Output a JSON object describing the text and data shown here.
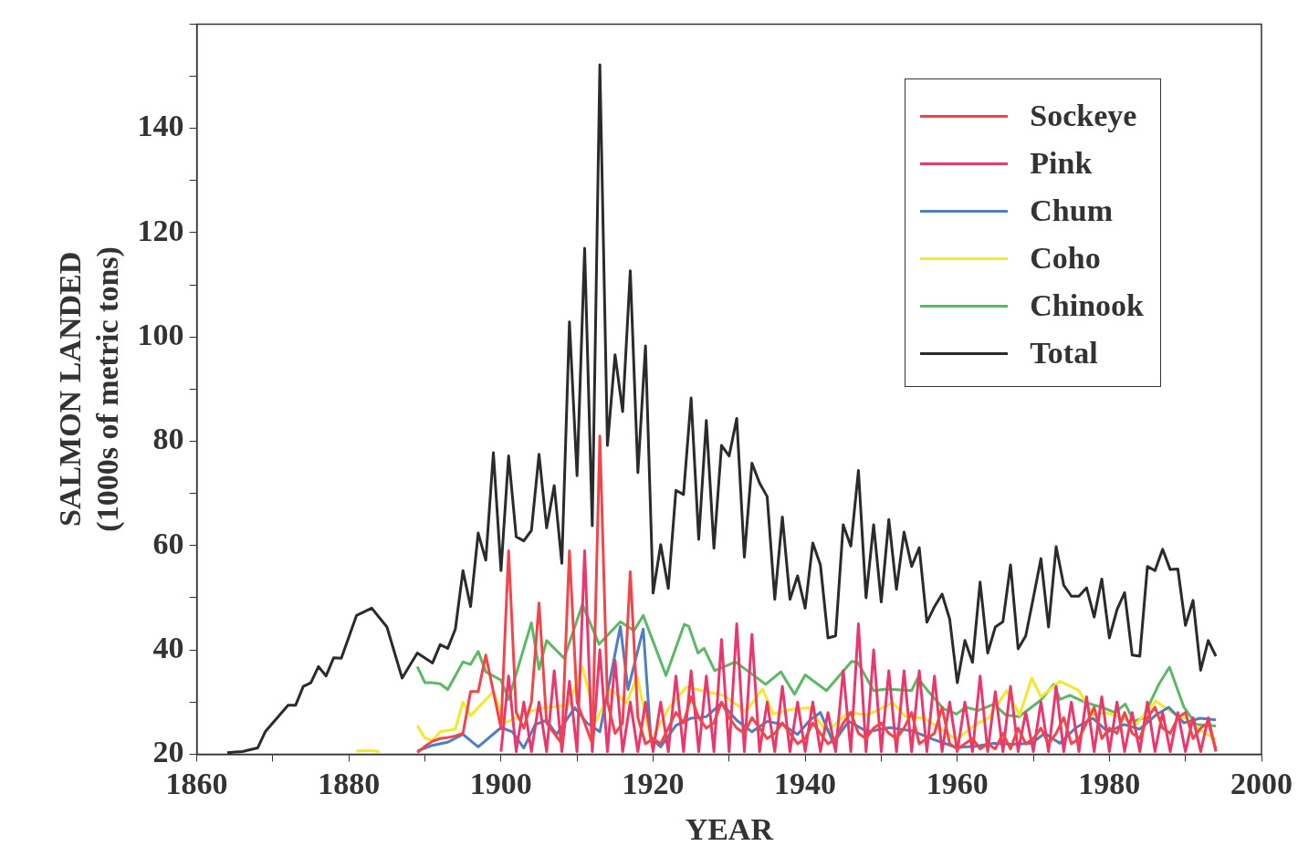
{
  "chart_data": {
    "type": "line",
    "xlabel": "YEAR",
    "ylabel": "SALMON LANDED\n(1000s of metric tons)",
    "xlim": [
      1860,
      2000
    ],
    "xticks": [
      1860,
      {
        "value": 1870,
        "label": null
      },
      1880,
      {
        "value": 1890,
        "label": null
      },
      1900,
      {
        "value": 1910,
        "label": null
      },
      1920,
      {
        "value": 1930,
        "label": null
      },
      1940,
      {
        "value": 1950,
        "label": null
      },
      1960,
      {
        "value": 1970,
        "label": null
      },
      1980,
      {
        "value": 1990,
        "label": null
      },
      2000
    ],
    "ylim": [
      20,
      160
    ],
    "yticks": [
      20,
      {
        "value": 30,
        "label": null
      },
      40,
      {
        "value": 50,
        "label": null
      },
      60,
      {
        "value": 70,
        "label": null
      },
      80,
      {
        "value": 90,
        "label": null
      },
      100,
      {
        "value": 110,
        "label": null
      },
      120,
      {
        "value": 130,
        "label": null
      },
      140,
      {
        "value": 150,
        "label": null
      },
      {
        "value": 160,
        "label": null
      }
    ],
    "grid": false,
    "legend": "top right",
    "marker": "none",
    "line_style": "solid",
    "series": [
      {
        "name": "Sockeye",
        "color": "#f0454a",
        "x": [
          1889,
          1890,
          1891,
          1892,
          1893,
          1894,
          1895,
          1896,
          1897,
          1898,
          1899,
          1900,
          1901,
          1902,
          1903,
          1904,
          1905,
          1906,
          1907,
          1908,
          1909,
          1910,
          1911,
          1912,
          1913,
          1914,
          1915,
          1916,
          1917,
          1918,
          1919,
          1920,
          1921,
          1922,
          1923,
          1924,
          1925,
          1926,
          1927,
          1928,
          1929,
          1930,
          1931,
          1932,
          1933,
          1934,
          1935,
          1936,
          1937,
          1938,
          1939,
          1940,
          1941,
          1942,
          1943,
          1944,
          1945,
          1946,
          1947,
          1948,
          1949,
          1950,
          1951,
          1952,
          1953,
          1954,
          1955,
          1956,
          1957,
          1958,
          1959,
          1960,
          1961,
          1962,
          1963,
          1964,
          1965,
          1966,
          1967,
          1968,
          1969,
          1970,
          1971,
          1972,
          1973,
          1974,
          1975,
          1976,
          1977,
          1978,
          1979,
          1980,
          1981,
          1982,
          1983,
          1984,
          1985,
          1986,
          1987,
          1988,
          1989,
          1990,
          1991,
          1992,
          1993,
          1994
        ],
        "values": [
          20.3,
          21.5,
          22.5,
          23,
          23.2,
          23.5,
          24,
          32,
          32,
          39,
          32,
          25,
          59,
          28,
          25,
          30,
          49,
          26,
          24,
          22,
          59,
          30,
          26,
          22,
          81,
          30,
          24,
          26,
          55,
          27,
          22,
          23,
          22,
          25,
          28,
          26,
          31,
          27,
          25,
          26,
          30,
          27,
          25,
          24,
          27,
          25,
          23,
          24,
          26,
          24,
          22,
          23,
          26,
          24,
          22,
          23,
          26,
          28,
          24,
          23,
          25,
          26,
          24,
          23,
          25,
          28,
          22,
          23,
          24,
          29,
          22,
          21,
          22,
          23,
          21,
          22,
          21,
          24,
          21,
          25,
          22,
          23,
          25,
          22,
          24,
          27,
          22,
          23,
          26,
          29,
          23,
          25,
          24,
          28,
          24,
          23,
          27,
          29,
          25,
          24,
          27,
          28,
          23,
          25,
          26,
          21
        ]
      },
      {
        "name": "Pink",
        "color": "#e8386d",
        "x": [
          1900,
          1901,
          1902,
          1903,
          1904,
          1905,
          1906,
          1907,
          1908,
          1909,
          1910,
          1911,
          1912,
          1913,
          1914,
          1915,
          1916,
          1917,
          1918,
          1919,
          1920,
          1921,
          1922,
          1923,
          1924,
          1925,
          1926,
          1927,
          1928,
          1929,
          1930,
          1931,
          1932,
          1933,
          1934,
          1935,
          1936,
          1937,
          1938,
          1939,
          1940,
          1941,
          1942,
          1943,
          1944,
          1945,
          1946,
          1947,
          1948,
          1949,
          1950,
          1951,
          1952,
          1953,
          1954,
          1955,
          1956,
          1957,
          1958,
          1959,
          1960,
          1961,
          1962,
          1963,
          1964,
          1965,
          1966,
          1967,
          1968,
          1969,
          1970,
          1971,
          1972,
          1973,
          1974,
          1975,
          1976,
          1977,
          1978,
          1979,
          1980,
          1981,
          1982,
          1983,
          1984,
          1985,
          1986,
          1987,
          1988,
          1989,
          1990,
          1991,
          1992,
          1993,
          1994
        ],
        "values": [
          20.5,
          35,
          20.5,
          30,
          20.5,
          30,
          20.5,
          36,
          20.5,
          34,
          20.5,
          59,
          20.5,
          40,
          20.5,
          38,
          20.5,
          30,
          20.5,
          30,
          20.5,
          30,
          20.5,
          35,
          20.5,
          36,
          20.5,
          35,
          20.5,
          42,
          20.5,
          45,
          20.5,
          43,
          20.5,
          30,
          20.5,
          33,
          20.5,
          30,
          20.5,
          30,
          20.5,
          28,
          20.5,
          36,
          20.5,
          45,
          20.5,
          40,
          20.5,
          36,
          20.5,
          36,
          20.5,
          36,
          20.5,
          35,
          20.5,
          30,
          20.5,
          30,
          20.5,
          35,
          20.5,
          32,
          20.5,
          33,
          20.5,
          28,
          20.5,
          30,
          20.5,
          33,
          20.5,
          30,
          20.5,
          31,
          20.5,
          31,
          20.5,
          30,
          20.5,
          28,
          20.5,
          30,
          20.5,
          28,
          20.5,
          28,
          20.5,
          27,
          20.5,
          27,
          20.5
        ]
      },
      {
        "name": "Chum",
        "color": "#4f7fc0",
        "x": [
          1889,
          1891,
          1893,
          1895,
          1897,
          1900,
          1901.5,
          1903,
          1904.5,
          1906,
          1907.3,
          1909.7,
          1911.3,
          1913,
          1915.7,
          1916.7,
          1918.7,
          1919.7,
          1921,
          1923,
          1925,
          1927,
          1929,
          1931,
          1933,
          1935,
          1937,
          1939,
          1940.6,
          1942,
          1943.7,
          1945.7,
          1948.2,
          1951.1,
          1954,
          1956.9,
          1959.9,
          1962.4,
          1964.8,
          1967.3,
          1969.8,
          1971.5,
          1973.5,
          1975.6,
          1977.8,
          1979.8,
          1981.9,
          1984,
          1986.1,
          1987.8,
          1989.8,
          1991.9,
          1994
        ],
        "values": [
          20.6,
          21.7,
          22.3,
          23.8,
          21.4,
          25.1,
          24.3,
          21.2,
          25.7,
          26.5,
          23.8,
          28.9,
          26,
          24.3,
          44.5,
          32.4,
          44,
          23.1,
          21.4,
          25.5,
          26.9,
          27.2,
          29.8,
          26.5,
          24.3,
          26.3,
          25.7,
          23.8,
          26.5,
          28,
          22.1,
          26.3,
          24.3,
          25.1,
          24.5,
          22.8,
          21.3,
          21.5,
          22.1,
          21.9,
          22.1,
          24,
          22.1,
          25.1,
          26.9,
          24.3,
          25.7,
          24.8,
          27.5,
          29,
          26,
          26.9,
          26.6
        ]
      },
      {
        "name": "Coho",
        "color": "#f5e62e",
        "x": [
          1881,
          1882,
          1883,
          1884,
          1885,
          1889,
          1890,
          1891,
          1892,
          1894,
          1895,
          1896,
          1899,
          1900.5,
          1903.7,
          1905.7,
          1908.9,
          1910.7,
          1912.5,
          1914.5,
          1916.5,
          1917.9,
          1919.7,
          1922.1,
          1924.4,
          1927,
          1929.4,
          1932.2,
          1934.4,
          1935.8,
          1938.2,
          1940.6,
          1942.8,
          1945.7,
          1948.2,
          1951.5,
          1953.2,
          1955.7,
          1959.9,
          1962.4,
          1964.1,
          1966.5,
          1968.2,
          1969.8,
          1971,
          1973.5,
          1976,
          1977.8,
          1979.4,
          1981.9,
          1983.5,
          1986.1,
          1988.2,
          1990.2,
          1992.3,
          1994
        ],
        "values": [
          20.6,
          20.7,
          20.7,
          20.5,
          null,
          25.5,
          23.1,
          22.6,
          24.3,
          24.8,
          30,
          27.4,
          32,
          26,
          28.2,
          28.9,
          29.4,
          36.8,
          26.3,
          32.4,
          29.8,
          34.9,
          22.6,
          28.9,
          32.9,
          32,
          31.2,
          28.2,
          32.5,
          27.7,
          28.6,
          28.9,
          24.3,
          28,
          27.5,
          29.9,
          27.2,
          26.9,
          22.8,
          25.7,
          26.9,
          32.2,
          27.5,
          34.6,
          31,
          34,
          32.2,
          27.5,
          28,
          26.9,
          25.7,
          30.2,
          28,
          26.6,
          24.3,
          22.8
        ]
      },
      {
        "name": "Chinook",
        "color": "#5cb865",
        "x": [
          1889,
          1890,
          1891,
          1892,
          1893,
          1895,
          1896,
          1897,
          1898,
          1900,
          1901,
          1904,
          1905,
          1906,
          1908.3,
          1910.7,
          1912.9,
          1915.7,
          1917.5,
          1918.7,
          1921.7,
          1924.1,
          1924.7,
          1925.9,
          1926.7,
          1928.1,
          1930.8,
          1932.6,
          1934.8,
          1936.8,
          1938.6,
          1940,
          1942.8,
          1946.1,
          1946.9,
          1949,
          1950.7,
          1954,
          1954.8,
          1956.1,
          1958.2,
          1959.9,
          1961.1,
          1962.8,
          1964.8,
          1966.4,
          1968.1,
          1969.4,
          1971,
          1972.7,
          1973.5,
          1974.8,
          1976.9,
          1979,
          1980.7,
          1982.1,
          1983.2,
          1984.4,
          1986.5,
          1987.9,
          1989.8,
          1991.4,
          1994
        ],
        "values": [
          36.8,
          33.7,
          33.7,
          33.5,
          32.4,
          37.7,
          37.2,
          39.7,
          35.8,
          34.2,
          30.5,
          45.2,
          36.3,
          41.8,
          38.4,
          48.7,
          41.1,
          45.4,
          43.7,
          46.6,
          35.1,
          44.9,
          44.5,
          39.4,
          40.3,
          36,
          37.7,
          35.8,
          33.4,
          35.8,
          31.5,
          35.2,
          32.2,
          37.8,
          37.6,
          32.2,
          32.5,
          32.2,
          34.6,
          32.2,
          28.7,
          27.7,
          29,
          28.4,
          29.6,
          27.5,
          27.2,
          28.6,
          30.4,
          33.4,
          30.5,
          31.3,
          29.9,
          29,
          28,
          29.6,
          26.3,
          26.9,
          33.4,
          36.7,
          29,
          25.7,
          25.4
        ]
      },
      {
        "name": "Total",
        "color": "#2b2b2b",
        "x": [
          1864,
          1866,
          1868,
          1869,
          1872,
          1873,
          1874,
          1875,
          1876,
          1877,
          1878,
          1879,
          1881,
          1883,
          1885,
          1887,
          1889,
          1891,
          1892,
          1893,
          1894,
          1895,
          1896,
          1897,
          1898,
          1899,
          1900,
          1901,
          1902,
          1903,
          1904,
          1905,
          1906,
          1907,
          1908,
          1909,
          1910,
          1911,
          1912,
          1913,
          1914,
          1915,
          1916,
          1917,
          1918,
          1919,
          1920,
          1921,
          1922,
          1923,
          1924,
          1925,
          1926,
          1927,
          1928,
          1929,
          1930,
          1931,
          1932,
          1933,
          1934,
          1935,
          1936,
          1937,
          1938,
          1939,
          1940,
          1941,
          1942,
          1943,
          1944,
          1945,
          1946,
          1947,
          1948,
          1949,
          1950,
          1951,
          1952,
          1953,
          1954,
          1955,
          1956,
          1957,
          1958,
          1959,
          1960,
          1961,
          1962,
          1963,
          1964,
          1965,
          1966,
          1967,
          1968,
          1969,
          1970,
          1971,
          1972,
          1973,
          1974,
          1975,
          1976,
          1977,
          1978,
          1979,
          1980,
          1981,
          1982,
          1983,
          1984,
          1985,
          1986,
          1987,
          1988,
          1989,
          1990,
          1991,
          1992,
          1993,
          1994
        ],
        "values": [
          20.3,
          20.5,
          21.2,
          24.3,
          29.4,
          29.4,
          33,
          33.7,
          36.8,
          35,
          38.5,
          38.4,
          46.6,
          48,
          44.4,
          34.6,
          39.4,
          37.5,
          41,
          40.3,
          44,
          55.2,
          48.3,
          62.4,
          57.2,
          77.8,
          55.2,
          77.2,
          61.7,
          60.9,
          62.9,
          77.5,
          63.4,
          71.5,
          56.6,
          102.9,
          73.4,
          117,
          63.8,
          152.2,
          79.2,
          96.6,
          85.7,
          112.7,
          74,
          98.3,
          50.9,
          60.2,
          51.8,
          70.6,
          69.8,
          88.3,
          61.2,
          84,
          59.5,
          79.2,
          77.2,
          84.4,
          57.8,
          75.8,
          72,
          69.4,
          49.7,
          65.5,
          49.7,
          54.2,
          48,
          60.5,
          56.3,
          42.3,
          42.7,
          64,
          59.9,
          74.4,
          50,
          64,
          49.2,
          65,
          51.6,
          62.6,
          56,
          59.6,
          45.3,
          48.3,
          50.7,
          45.9,
          33.7,
          41.8,
          37.6,
          53,
          39.4,
          44.4,
          45.4,
          56.3,
          40.2,
          42.7,
          50,
          57.5,
          44.4,
          59.8,
          52.4,
          50.3,
          50.3,
          51.9,
          46.3,
          53.6,
          42.3,
          47.7,
          51,
          39,
          38.8,
          56,
          55.2,
          59.3,
          55.4,
          55.5,
          44.7,
          49.5,
          36.1,
          41.8,
          38.8
        ]
      }
    ]
  }
}
